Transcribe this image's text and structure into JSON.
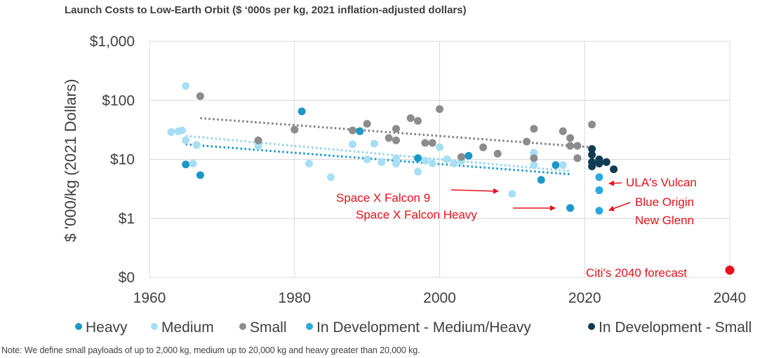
{
  "header": {
    "title": "Launch Costs to Low-Earth Orbit ($ ‘000s per kg, 2021 inflation-adjusted dollars)"
  },
  "footer": {
    "note": "Note: We define small payloads of up to 2,000 kg, medium up to 20,000 kg and heavy greater than 20,000 kg."
  },
  "chart_data": {
    "type": "scatter",
    "title": "Launch Costs to Low-Earth Orbit ($ ‘000s per kg, 2021 inflation-adjusted dollars)",
    "xlabel": "",
    "ylabel": "$ '000/kg (2021 Dollars)",
    "xlim": [
      1960,
      2040
    ],
    "ylim": [
      0.1,
      1000
    ],
    "yscale": "log",
    "grid": true,
    "x_ticks": [
      1960,
      1980,
      2000,
      2020,
      2040
    ],
    "x_tick_labels": [
      "1960",
      "1980",
      "2000",
      "2020",
      "2040"
    ],
    "y_ticks": [
      0.1,
      1,
      10,
      100,
      1000
    ],
    "y_tick_labels": [
      "$0",
      "$1",
      "$10",
      "$100",
      "$1,000"
    ],
    "legend_position": "bottom",
    "series": [
      {
        "name": "Heavy",
        "color": "#1b98c7",
        "points": [
          [
            1965,
            8.2
          ],
          [
            1967,
            5.4
          ],
          [
            1981,
            65
          ],
          [
            1989,
            30
          ],
          [
            1997,
            10.5
          ],
          [
            2004,
            11.5
          ],
          [
            2014,
            4.5
          ],
          [
            2016,
            8
          ],
          [
            2018,
            1.5
          ]
        ]
      },
      {
        "name": "Medium",
        "color": "#a8def4",
        "points": [
          [
            1963,
            29
          ],
          [
            1964,
            30
          ],
          [
            1964.5,
            31
          ],
          [
            1965,
            175
          ],
          [
            1965,
            21
          ],
          [
            1966,
            8.5
          ],
          [
            1966.5,
            17.5
          ],
          [
            1975,
            17
          ],
          [
            1982,
            8.5
          ],
          [
            1985,
            5
          ],
          [
            1988,
            18
          ],
          [
            1990,
            10
          ],
          [
            1991,
            18.5
          ],
          [
            1992,
            9
          ],
          [
            1994,
            10.5
          ],
          [
            1994,
            8.5
          ],
          [
            1997,
            6.2
          ],
          [
            1998,
            9.5
          ],
          [
            1999,
            8.6
          ],
          [
            2000,
            16
          ],
          [
            2001,
            10
          ],
          [
            2002,
            8.5
          ],
          [
            2003,
            9.5
          ],
          [
            2010,
            2.6
          ],
          [
            2013,
            13
          ],
          [
            2013,
            8
          ],
          [
            2017,
            8
          ]
        ]
      },
      {
        "name": "Small",
        "color": "#8c8c8c",
        "points": [
          [
            1967,
            118
          ],
          [
            1975,
            21
          ],
          [
            1980,
            32
          ],
          [
            1988,
            31
          ],
          [
            1990,
            40
          ],
          [
            1993,
            23
          ],
          [
            1994,
            33
          ],
          [
            1994,
            21
          ],
          [
            1996,
            50
          ],
          [
            1997,
            45
          ],
          [
            1998,
            19
          ],
          [
            1999,
            19
          ],
          [
            2000,
            71
          ],
          [
            2003,
            11
          ],
          [
            2006,
            16
          ],
          [
            2008,
            12.5
          ],
          [
            2012,
            20
          ],
          [
            2013,
            33
          ],
          [
            2013,
            10.5
          ],
          [
            2017,
            30
          ],
          [
            2018,
            23
          ],
          [
            2018,
            17
          ],
          [
            2019,
            17
          ],
          [
            2019,
            10.5
          ],
          [
            2021,
            39
          ]
        ]
      },
      {
        "name": "In Development - Medium/Heavy",
        "color": "#2aa9df",
        "points": [
          [
            2022,
            5
          ],
          [
            2022,
            3
          ],
          [
            2022,
            1.35
          ]
        ]
      },
      {
        "name": "In Development - Small",
        "color": "#0f3b55",
        "points": [
          [
            2021,
            15
          ],
          [
            2021,
            12
          ],
          [
            2021,
            9
          ],
          [
            2021,
            7.6
          ],
          [
            2022,
            10
          ],
          [
            2022,
            8.5
          ],
          [
            2023,
            9
          ],
          [
            2024,
            6.8
          ]
        ]
      },
      {
        "name": "Citi's 2040 forecast",
        "color": "#e8101a",
        "points": [
          [
            2040,
            0.133
          ]
        ]
      }
    ],
    "trendlines": [
      {
        "series": "Small",
        "color": "#7f7f7f",
        "from": [
          1967,
          50
        ],
        "to": [
          2021,
          16
        ]
      },
      {
        "series": "Medium",
        "color": "#8fd3f0",
        "from": [
          1965,
          25
        ],
        "to": [
          2018,
          6.3
        ]
      },
      {
        "series": "Heavy",
        "color": "#1b98c7",
        "from": [
          1965,
          18
        ],
        "to": [
          2018,
          5.6
        ]
      }
    ],
    "annotations": [
      {
        "text": "Space X Falcon 9",
        "target": [
          2010,
          2.6
        ]
      },
      {
        "text": "Space X Falcon Heavy",
        "target": [
          2018,
          1.5
        ]
      },
      {
        "text": "ULA's Vulcan",
        "target": [
          2022,
          5
        ]
      },
      {
        "text": "Blue Origin",
        "target": [
          2022,
          1.35
        ]
      },
      {
        "text": "New Glenn",
        "target": [
          2022,
          1.35
        ]
      },
      {
        "text": "Citi's 2040 forecast",
        "target": [
          2040,
          0.133
        ]
      }
    ]
  }
}
